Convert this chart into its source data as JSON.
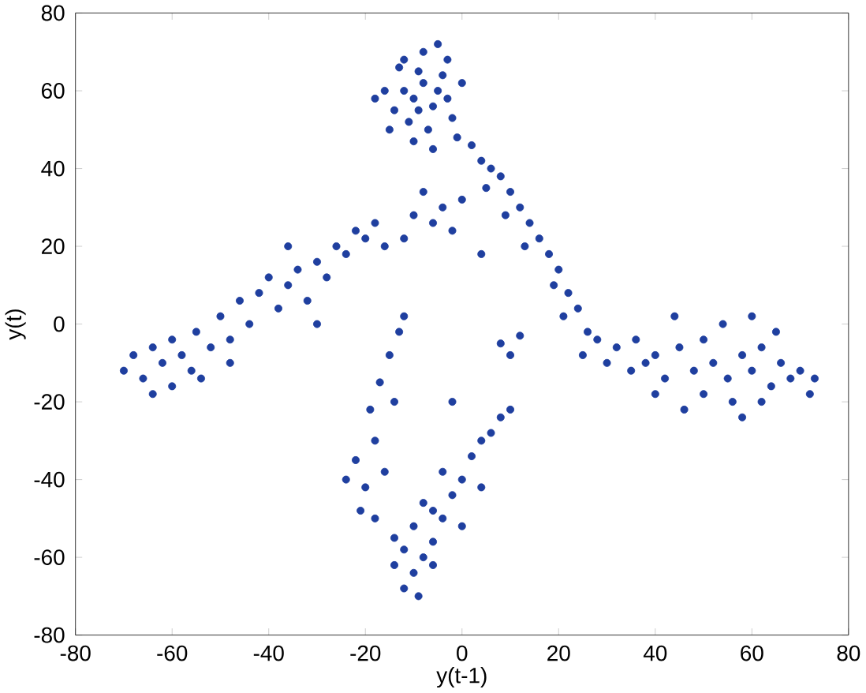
{
  "chart_data": {
    "type": "scatter",
    "xlabel": "y(t-1)",
    "ylabel": "y(t)",
    "xlim": [
      -80,
      80
    ],
    "ylim": [
      -80,
      80
    ],
    "xticks": [
      -80,
      -60,
      -40,
      -20,
      0,
      20,
      40,
      60,
      80
    ],
    "yticks": [
      -80,
      -60,
      -40,
      -20,
      0,
      20,
      40,
      60,
      80
    ],
    "marker": "circle",
    "series": [
      {
        "color": "#1f3f9f",
        "x": [
          -12,
          -10,
          -8,
          -6,
          -9,
          -5,
          -14,
          -11,
          -7,
          -3,
          -4,
          -13,
          -8,
          -5,
          -16,
          -18,
          -2,
          -10,
          -6,
          -12,
          0,
          -1,
          -15,
          -9,
          -3,
          2,
          4,
          6,
          8,
          5,
          10,
          12,
          9,
          14,
          16,
          13,
          18,
          20,
          19,
          22,
          24,
          21,
          26,
          28,
          25,
          30,
          32,
          35,
          8,
          10,
          12,
          38,
          40,
          42,
          45,
          48,
          50,
          52,
          55,
          54,
          58,
          60,
          62,
          64,
          66,
          68,
          70,
          72,
          73,
          56,
          50,
          46,
          44,
          60,
          65,
          40,
          58,
          62,
          36,
          -70,
          -68,
          -66,
          -64,
          -62,
          -60,
          -58,
          -56,
          -60,
          -55,
          -52,
          -50,
          -48,
          -46,
          -44,
          -42,
          -40,
          -38,
          -36,
          -34,
          -32,
          -30,
          -28,
          -26,
          -24,
          -22,
          -20,
          -18,
          -16,
          -30,
          -36,
          -48,
          -64,
          -54,
          -12,
          -10,
          -6,
          -4,
          0,
          -8,
          4,
          -2,
          -20,
          -22,
          -18,
          -19,
          -17,
          -15,
          -13,
          -21,
          -24,
          -16,
          -18,
          -12,
          -14,
          -12,
          -10,
          -8,
          -6,
          -10,
          -4,
          -8,
          -12,
          -2,
          0,
          -6,
          -14,
          -4,
          2,
          4,
          6,
          8,
          10,
          -2,
          -14,
          -9,
          0,
          4,
          -6
        ],
        "values": [
          60,
          58,
          62,
          56,
          65,
          60,
          55,
          52,
          50,
          58,
          64,
          66,
          70,
          72,
          60,
          58,
          53,
          47,
          45,
          68,
          62,
          48,
          50,
          55,
          68,
          46,
          42,
          40,
          38,
          35,
          34,
          30,
          28,
          26,
          22,
          20,
          18,
          14,
          10,
          8,
          4,
          2,
          -2,
          -4,
          -8,
          -10,
          -6,
          -12,
          -5,
          -8,
          -3,
          -10,
          -8,
          -14,
          -6,
          -12,
          -4,
          -10,
          -14,
          0,
          -8,
          -12,
          -6,
          -16,
          -10,
          -14,
          -12,
          -18,
          -14,
          -20,
          -18,
          -22,
          2,
          2,
          -2,
          -18,
          -24,
          -20,
          -4,
          -12,
          -8,
          -14,
          -6,
          -10,
          -4,
          -8,
          -12,
          -16,
          -2,
          -6,
          2,
          -4,
          6,
          0,
          8,
          12,
          4,
          10,
          14,
          6,
          16,
          12,
          20,
          18,
          24,
          22,
          26,
          20,
          0,
          20,
          -10,
          -18,
          -14,
          22,
          28,
          26,
          30,
          32,
          34,
          18,
          24,
          -42,
          -35,
          -30,
          -22,
          -15,
          -8,
          -2,
          -48,
          -40,
          -38,
          -50,
          2,
          -20,
          -68,
          -64,
          -60,
          -56,
          -52,
          -50,
          -46,
          -58,
          -44,
          -40,
          -62,
          -62,
          -38,
          -34,
          -30,
          -28,
          -24,
          -22,
          -20,
          -55,
          -70,
          -52,
          -42,
          -48
        ]
      }
    ]
  }
}
